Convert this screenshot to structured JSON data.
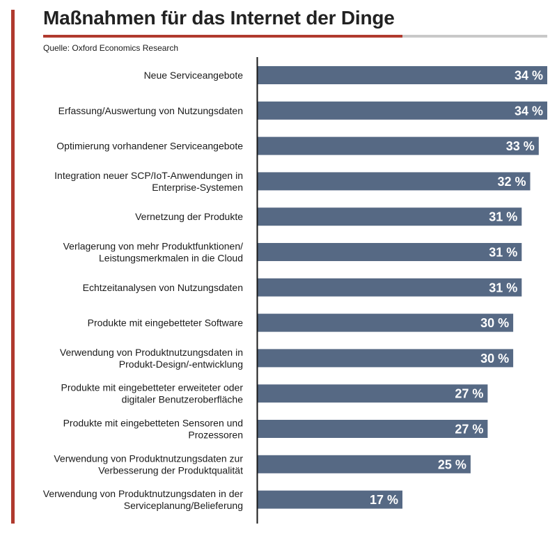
{
  "title": "Maßnahmen für das Internet der Dinge",
  "source": "Quelle: Oxford Economics Research",
  "colors": {
    "bar": "#566984",
    "accent": "#b03a2e",
    "rule": "#c9c9c9",
    "axis": "#1a1a1a"
  },
  "chart_data": {
    "type": "bar",
    "orientation": "horizontal",
    "categories": [
      [
        "Neue Serviceangebote"
      ],
      [
        "Erfassung/Auswertung von Nutzungsdaten"
      ],
      [
        "Optimierung vorhandener Serviceangebote"
      ],
      [
        "Integration neuer SCP/IoT-Anwendungen in",
        "Enterprise-Systemen"
      ],
      [
        "Vernetzung der Produkte"
      ],
      [
        "Verlagerung von mehr Produktfunktionen/",
        "Leistungsmerkmalen in die Cloud"
      ],
      [
        "Echtzeitanalysen von Nutzungsdaten"
      ],
      [
        "Produkte mit eingebetteter Software"
      ],
      [
        "Verwendung von Produktnutzungsdaten in",
        "Produkt-Design/-entwicklung"
      ],
      [
        "Produkte mit eingebetteter erweiteter oder",
        "digitaler Benutzeroberfläche"
      ],
      [
        "Produkte mit eingebetteten Sensoren und",
        "Prozessoren"
      ],
      [
        "Verwendung von Produktnutzungsdaten zur",
        "Verbesserung der Produktqualität"
      ],
      [
        "Verwendung von Produktnutzungsdaten in der",
        "Serviceplanung/Belieferung"
      ]
    ],
    "values": [
      34,
      34,
      33,
      32,
      31,
      31,
      31,
      30,
      30,
      27,
      27,
      25,
      17
    ],
    "value_labels": [
      "34 %",
      "34 %",
      "33 %",
      "32 %",
      "31 %",
      "31 %",
      "31 %",
      "30 %",
      "30 %",
      "27 %",
      "27 %",
      "25 %",
      "17 %"
    ],
    "xlim": [
      0,
      34
    ],
    "grid": false,
    "legend": "none"
  }
}
